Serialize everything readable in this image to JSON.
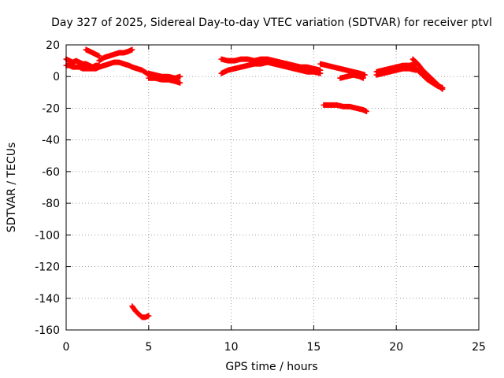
{
  "chart_data": {
    "type": "scatter",
    "title": "Day 327 of 2025, Sidereal Day-to-day VTEC variation (SDTVAR) for receiver ptvl",
    "xlabel": "GPS time / hours",
    "ylabel": "SDTVAR / TECUs",
    "xlim": [
      0,
      25
    ],
    "ylim": [
      -160,
      20
    ],
    "xticks": [
      0,
      5,
      10,
      15,
      20,
      25
    ],
    "yticks": [
      20,
      0,
      -20,
      -40,
      -60,
      -80,
      -100,
      -120,
      -140,
      -160
    ],
    "grid": true,
    "marker": "plus",
    "colors": {
      "series": "#ff0000",
      "grid": "#a0a0a0",
      "axis": "#000000"
    },
    "series": [
      {
        "x": [
          0.0,
          0.2,
          0.4,
          0.6,
          0.8,
          1.0,
          1.2,
          1.4,
          1.6,
          1.8,
          2.0
        ],
        "y": [
          11,
          10,
          9,
          10,
          9,
          8,
          8,
          7,
          6,
          7,
          7
        ]
      },
      {
        "x": [
          0.0,
          0.2,
          0.4,
          0.6,
          0.8,
          1.0,
          1.2,
          1.4,
          1.6,
          1.8,
          2.0
        ],
        "y": [
          7,
          7,
          6,
          6,
          6,
          5,
          5,
          5,
          5,
          5,
          6
        ]
      },
      {
        "x": [
          1.2,
          1.4,
          1.6,
          1.8,
          2.0
        ],
        "y": [
          17,
          16,
          15,
          14,
          13
        ]
      },
      {
        "x": [
          2.0,
          2.3,
          2.6,
          2.9,
          3.2,
          3.5,
          3.8,
          4.0
        ],
        "y": [
          10,
          12,
          13,
          14,
          15,
          15,
          16,
          17
        ]
      },
      {
        "x": [
          2.0,
          2.3,
          2.6,
          2.9,
          3.2,
          3.5,
          3.8,
          4.0,
          4.3,
          4.6,
          4.9,
          5.0
        ],
        "y": [
          6,
          7,
          8,
          9,
          9,
          8,
          7,
          6,
          5,
          4,
          2,
          1
        ]
      },
      {
        "x": [
          5.0,
          5.4,
          5.8,
          6.2,
          6.6,
          6.9
        ],
        "y": [
          2,
          1,
          0,
          0,
          -1,
          0
        ]
      },
      {
        "x": [
          5.0,
          5.4,
          5.8,
          6.2,
          6.6,
          6.9
        ],
        "y": [
          -1,
          -1,
          -2,
          -2,
          -3,
          -4
        ]
      },
      {
        "x": [
          4.0,
          4.2,
          4.4,
          4.6,
          4.8,
          5.0
        ],
        "y": [
          -145,
          -148,
          -150,
          -152,
          -152,
          -151
        ]
      },
      {
        "x": [
          9.4,
          9.8,
          10.2,
          10.6,
          11.0,
          11.4,
          11.8,
          12.2,
          12.6,
          13.0,
          13.4,
          13.8,
          14.2,
          14.6,
          15.0,
          15.4
        ],
        "y": [
          11,
          10,
          10,
          11,
          11,
          10,
          11,
          11,
          10,
          9,
          8,
          7,
          6,
          6,
          5,
          4
        ]
      },
      {
        "x": [
          9.4,
          9.8,
          10.2,
          10.6,
          11.0,
          11.4,
          11.8,
          12.2,
          12.6,
          13.0,
          13.4,
          13.8,
          14.2,
          14.6,
          15.0,
          15.4
        ],
        "y": [
          2,
          4,
          5,
          6,
          7,
          8,
          8,
          9,
          8,
          7,
          6,
          5,
          4,
          3,
          3,
          2
        ]
      },
      {
        "x": [
          15.4,
          15.8,
          16.2,
          16.6,
          17.0,
          17.4,
          17.8,
          18.1
        ],
        "y": [
          8,
          7,
          6,
          5,
          4,
          3,
          2,
          1
        ]
      },
      {
        "x": [
          15.6,
          16.0,
          16.4,
          16.8,
          17.2,
          17.6,
          18.0,
          18.2
        ],
        "y": [
          -18,
          -18,
          -18,
          -19,
          -19,
          -20,
          -21,
          -22
        ]
      },
      {
        "x": [
          16.6,
          17.0,
          17.4,
          17.8,
          18.0
        ],
        "y": [
          -1,
          0,
          1,
          0,
          -1
        ]
      },
      {
        "x": [
          18.8,
          19.2,
          19.6,
          20.0,
          20.4,
          20.8,
          21.2
        ],
        "y": [
          3,
          4,
          5,
          6,
          7,
          7,
          8
        ]
      },
      {
        "x": [
          18.8,
          19.2,
          19.6,
          20.0,
          20.4,
          20.8,
          21.2
        ],
        "y": [
          1,
          2,
          3,
          4,
          5,
          5,
          4
        ]
      },
      {
        "x": [
          21.0,
          21.3,
          21.6,
          21.9,
          22.2,
          22.5,
          22.8
        ],
        "y": [
          11,
          8,
          4,
          1,
          -2,
          -5,
          -8
        ]
      },
      {
        "x": [
          21.0,
          21.3,
          21.6,
          21.9,
          22.2,
          22.5,
          22.8
        ],
        "y": [
          6,
          4,
          1,
          -2,
          -4,
          -6,
          -7
        ]
      }
    ]
  }
}
